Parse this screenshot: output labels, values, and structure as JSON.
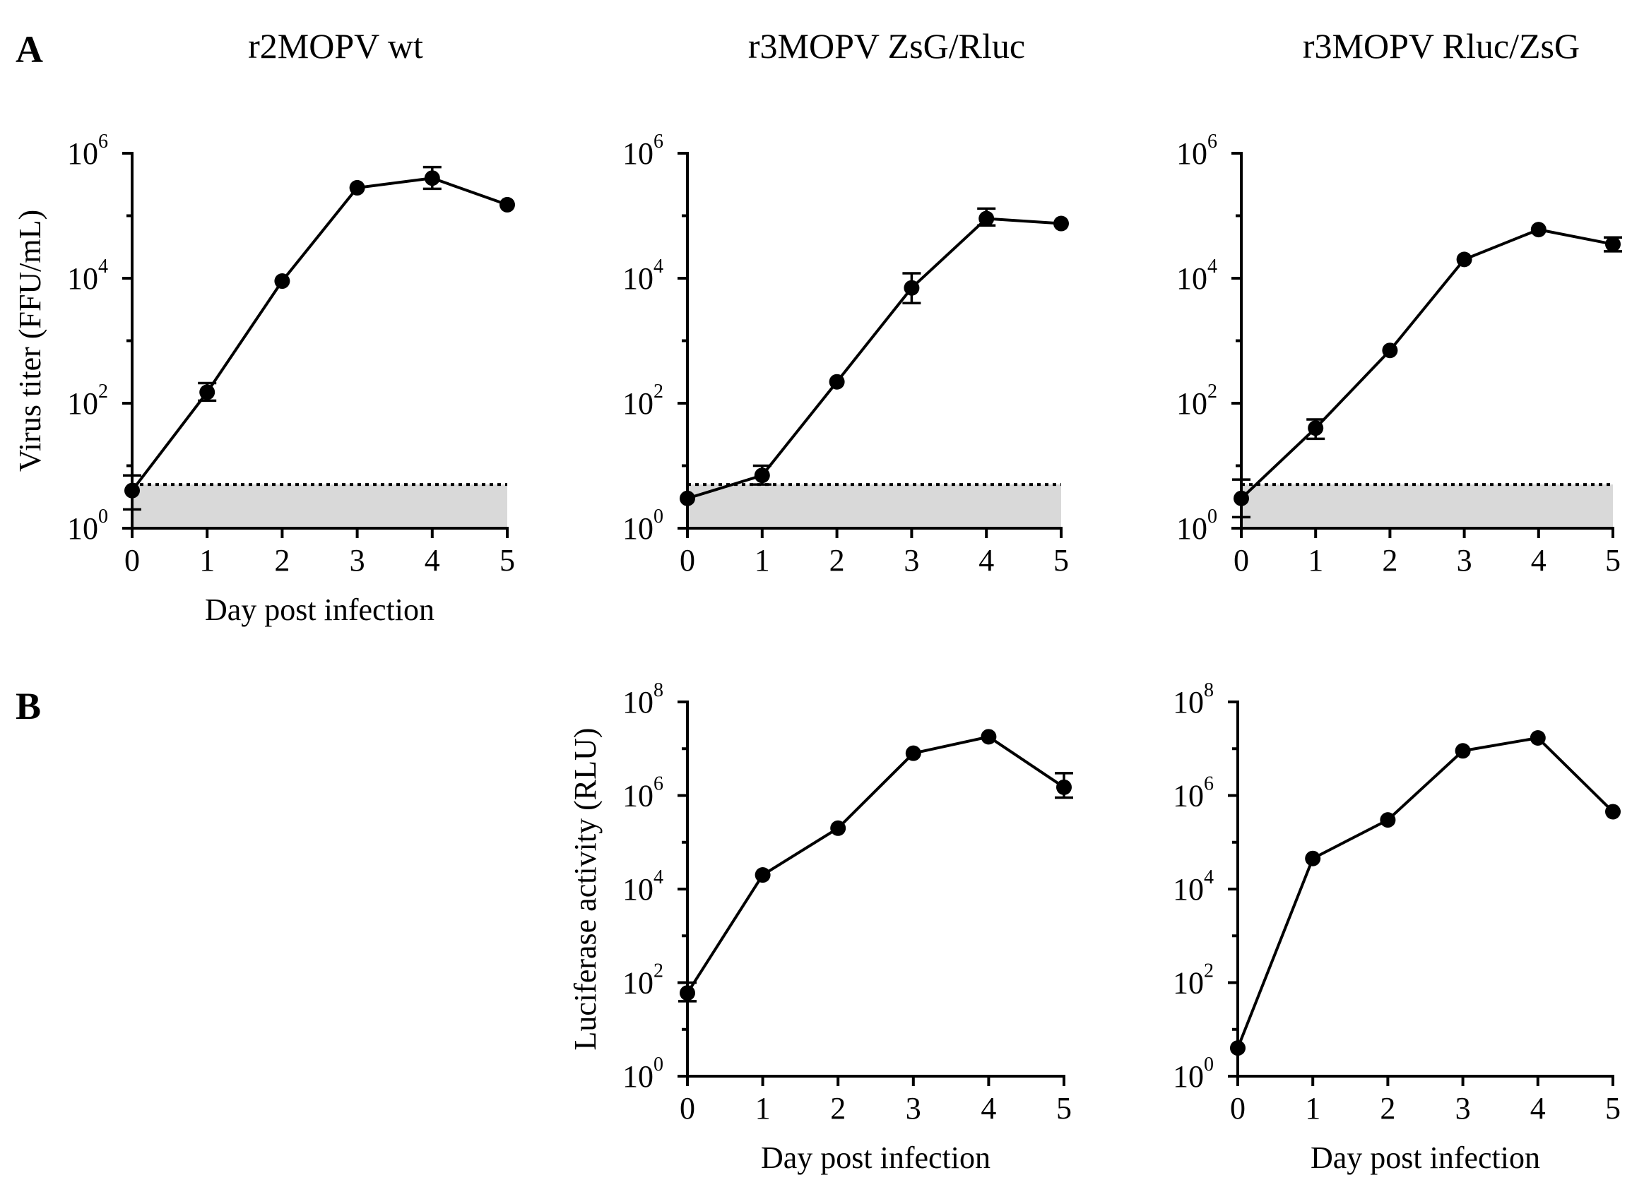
{
  "figure": {
    "panel_labels": [
      "A",
      "B"
    ],
    "column_titles": [
      "r2MOPV wt",
      "r3MOPV ZsG/Rluc",
      "r3MOPV Rluc/ZsG"
    ]
  },
  "chart_data": [
    {
      "id": "A-wt",
      "type": "line",
      "panel": "A",
      "title": "r2MOPV wt",
      "xlabel": "Day post infection",
      "ylabel": "Virus titer (FFU/mL)",
      "yscale": "log",
      "ylim_exp": [
        0,
        6
      ],
      "ytick_exps": [
        0,
        2,
        4,
        6
      ],
      "x": [
        0,
        1,
        2,
        3,
        4,
        5
      ],
      "xticks": [
        "0",
        "1",
        "2",
        "3",
        "4",
        "5"
      ],
      "series": [
        {
          "name": "r2MOPV wt",
          "values": [
            4,
            150,
            9000,
            280000,
            400000,
            150000
          ],
          "err_upper": [
            7,
            210,
            0,
            0,
            600000,
            0
          ],
          "err_lower": [
            2,
            110,
            0,
            0,
            270000,
            0
          ]
        }
      ],
      "detection_limit": 5
    },
    {
      "id": "A-zsg-rluc",
      "type": "line",
      "panel": "A",
      "title": "r3MOPV ZsG/Rluc",
      "xlabel": "",
      "ylabel": "",
      "yscale": "log",
      "ylim_exp": [
        0,
        6
      ],
      "ytick_exps": [
        0,
        2,
        4,
        6
      ],
      "x": [
        0,
        1,
        2,
        3,
        4,
        5
      ],
      "xticks": [
        "0",
        "1",
        "2",
        "3",
        "4",
        "5"
      ],
      "series": [
        {
          "name": "r3MOPV ZsG/Rluc",
          "values": [
            3,
            7,
            220,
            7000,
            90000,
            75000
          ],
          "err_upper": [
            0,
            10,
            0,
            12000,
            130000,
            0
          ],
          "err_lower": [
            0,
            5,
            0,
            4000,
            70000,
            0
          ]
        }
      ],
      "detection_limit": 5
    },
    {
      "id": "A-rluc-zsg",
      "type": "line",
      "panel": "A",
      "title": "r3MOPV Rluc/ZsG",
      "xlabel": "",
      "ylabel": "",
      "yscale": "log",
      "ylim_exp": [
        0,
        6
      ],
      "ytick_exps": [
        0,
        2,
        4,
        6
      ],
      "x": [
        0,
        1,
        2,
        3,
        4,
        5
      ],
      "xticks": [
        "0",
        "1",
        "2",
        "3",
        "4",
        "5"
      ],
      "series": [
        {
          "name": "r3MOPV Rluc/ZsG",
          "values": [
            3,
            40,
            700,
            20000,
            60000,
            35000
          ],
          "err_upper": [
            6,
            55,
            0,
            0,
            0,
            45000
          ],
          "err_lower": [
            1.5,
            27,
            0,
            0,
            0,
            27000
          ]
        }
      ],
      "detection_limit": 5
    },
    {
      "id": "B-zsg-rluc",
      "type": "line",
      "panel": "B",
      "title": "",
      "xlabel": "Day post infection",
      "ylabel": "Luciferase activity (RLU)",
      "yscale": "log",
      "ylim_exp": [
        0,
        8
      ],
      "ytick_exps": [
        0,
        2,
        4,
        6,
        8
      ],
      "x": [
        0,
        1,
        2,
        3,
        4,
        5
      ],
      "xticks": [
        "0",
        "1",
        "2",
        "3",
        "4",
        "5"
      ],
      "series": [
        {
          "name": "r3MOPV ZsG/Rluc",
          "values": [
            60,
            20000,
            200000,
            8000000,
            18000000,
            1500000
          ],
          "err_upper": [
            100,
            0,
            0,
            0,
            0,
            3000000
          ],
          "err_lower": [
            40,
            0,
            0,
            0,
            0,
            900000
          ]
        }
      ]
    },
    {
      "id": "B-rluc-zsg",
      "type": "line",
      "panel": "B",
      "title": "",
      "xlabel": "Day post infection",
      "ylabel": "",
      "yscale": "log",
      "ylim_exp": [
        0,
        8
      ],
      "ytick_exps": [
        0,
        2,
        4,
        6,
        8
      ],
      "x": [
        0,
        1,
        2,
        3,
        4,
        5
      ],
      "xticks": [
        "0",
        "1",
        "2",
        "3",
        "4",
        "5"
      ],
      "series": [
        {
          "name": "r3MOPV Rluc/ZsG",
          "values": [
            4,
            45000,
            300000,
            9000000,
            17000000,
            450000
          ],
          "err_upper": [
            0,
            0,
            0,
            0,
            0,
            0
          ],
          "err_lower": [
            0,
            0,
            0,
            0,
            0,
            0
          ]
        }
      ]
    }
  ]
}
